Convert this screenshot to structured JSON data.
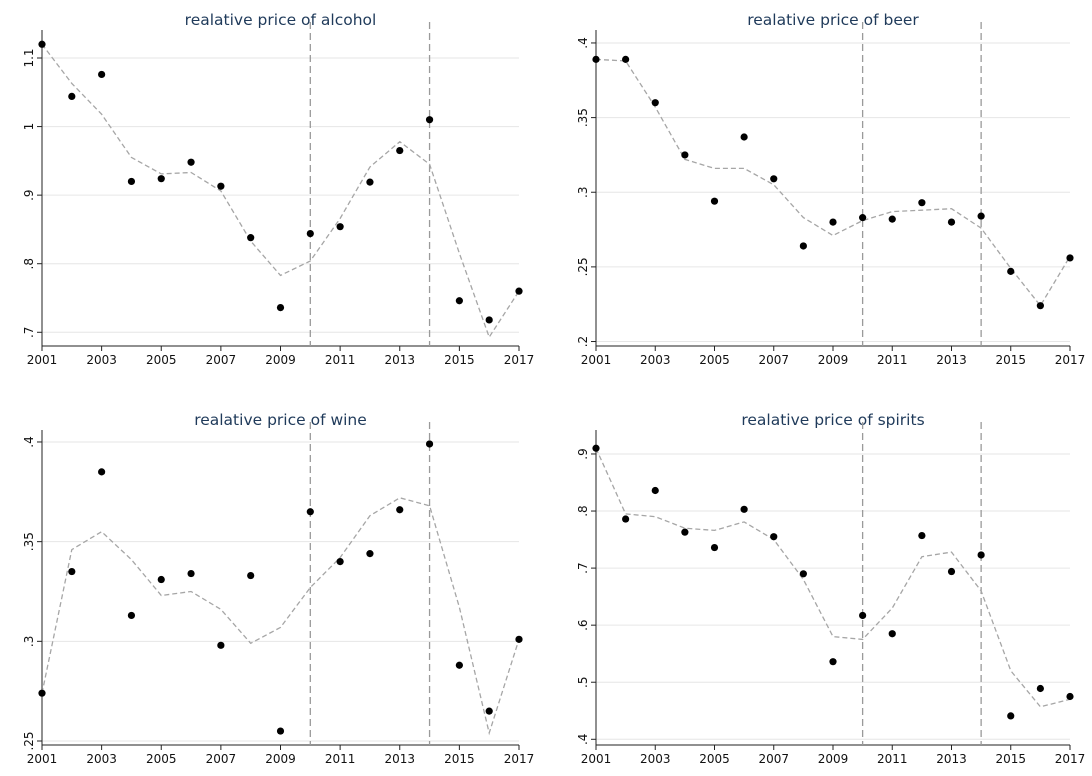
{
  "chart_data": [
    {
      "type": "scatter",
      "title": "realative price of alcohol",
      "x": [
        2001,
        2002,
        2003,
        2004,
        2005,
        2006,
        2007,
        2008,
        2009,
        2010,
        2011,
        2012,
        2013,
        2014,
        2015,
        2016,
        2017
      ],
      "series": [
        {
          "values": [
            1.12,
            1.044,
            1.076,
            0.92,
            0.924,
            0.948,
            0.913,
            0.838,
            0.736,
            0.844,
            0.854,
            0.919,
            0.965,
            1.01,
            0.746,
            0.718,
            0.76
          ]
        },
        {
          "style": "dashed-fit",
          "values": [
            1.12,
            1.063,
            1.018,
            0.955,
            0.931,
            0.933,
            0.906,
            0.833,
            0.783,
            0.804,
            0.866,
            0.941,
            0.978,
            0.945,
            0.815,
            0.693,
            0.76
          ]
        }
      ],
      "ylim": [
        0.68,
        1.135
      ],
      "yticks": [
        {
          "v": 0.7,
          "label": ".7"
        },
        {
          "v": 0.8,
          "label": ".8"
        },
        {
          "v": 0.9,
          "label": ".9"
        },
        {
          "v": 1.0,
          "label": "1"
        },
        {
          "v": 1.1,
          "label": "1.1"
        }
      ],
      "xticks": [
        "2001",
        "2003",
        "2005",
        "2007",
        "2009",
        "2011",
        "2013",
        "2015",
        "2017"
      ],
      "vlines": [
        2010,
        2014
      ],
      "grid": true
    },
    {
      "type": "scatter",
      "title": "realative price of beer",
      "x": [
        2001,
        2002,
        2003,
        2004,
        2005,
        2006,
        2007,
        2008,
        2009,
        2010,
        2011,
        2012,
        2013,
        2014,
        2015,
        2016,
        2017
      ],
      "series": [
        {
          "values": [
            0.389,
            0.389,
            0.36,
            0.325,
            0.294,
            0.337,
            0.309,
            0.264,
            0.28,
            0.283,
            0.282,
            0.293,
            0.28,
            0.284,
            0.247,
            0.224,
            0.256
          ]
        },
        {
          "style": "dashed-fit",
          "values": [
            0.389,
            0.388,
            0.357,
            0.322,
            0.316,
            0.316,
            0.305,
            0.283,
            0.271,
            0.281,
            0.287,
            0.288,
            0.289,
            0.276,
            0.249,
            0.224,
            0.257
          ]
        }
      ],
      "ylim": [
        0.197,
        0.406
      ],
      "yticks": [
        {
          "v": 0.2,
          "label": ".2"
        },
        {
          "v": 0.25,
          "label": ".25"
        },
        {
          "v": 0.3,
          "label": ".3"
        },
        {
          "v": 0.35,
          "label": ".35"
        },
        {
          "v": 0.4,
          "label": ".4"
        }
      ],
      "xticks": [
        "2001",
        "2003",
        "2005",
        "2007",
        "2009",
        "2011",
        "2013",
        "2015",
        "2017"
      ],
      "vlines": [
        2010,
        2014
      ],
      "grid": true
    },
    {
      "type": "scatter",
      "title": "realative price of wine",
      "x": [
        2001,
        2002,
        2003,
        2004,
        2005,
        2006,
        2007,
        2008,
        2009,
        2010,
        2011,
        2012,
        2013,
        2014,
        2015,
        2016,
        2017
      ],
      "series": [
        {
          "values": [
            0.274,
            0.335,
            0.385,
            0.313,
            0.331,
            0.334,
            0.298,
            0.333,
            0.255,
            0.365,
            0.34,
            0.344,
            0.366,
            0.399,
            0.288,
            0.265,
            0.301
          ]
        },
        {
          "style": "dashed-fit",
          "values": [
            0.274,
            0.346,
            0.355,
            0.341,
            0.323,
            0.325,
            0.316,
            0.299,
            0.307,
            0.327,
            0.342,
            0.363,
            0.372,
            0.368,
            0.317,
            0.254,
            0.301
          ]
        }
      ],
      "ylim": [
        0.248,
        0.404
      ],
      "yticks": [
        {
          "v": 0.25,
          "label": ".25"
        },
        {
          "v": 0.3,
          "label": ".3"
        },
        {
          "v": 0.35,
          "label": ".35"
        },
        {
          "v": 0.4,
          "label": ".4"
        }
      ],
      "xticks": [
        "2001",
        "2003",
        "2005",
        "2007",
        "2009",
        "2011",
        "2013",
        "2015",
        "2017"
      ],
      "vlines": [
        2010,
        2014
      ],
      "grid": true
    },
    {
      "type": "scatter",
      "title": "realative price of spirits",
      "x": [
        2001,
        2002,
        2003,
        2004,
        2005,
        2006,
        2007,
        2008,
        2009,
        2010,
        2011,
        2012,
        2013,
        2014,
        2015,
        2016,
        2017
      ],
      "series": [
        {
          "values": [
            0.91,
            0.786,
            0.836,
            0.763,
            0.736,
            0.803,
            0.755,
            0.69,
            0.536,
            0.617,
            0.585,
            0.757,
            0.694,
            0.723,
            0.441,
            0.489,
            0.475
          ]
        },
        {
          "style": "dashed-fit",
          "values": [
            0.91,
            0.795,
            0.79,
            0.77,
            0.766,
            0.781,
            0.75,
            0.68,
            0.58,
            0.575,
            0.63,
            0.72,
            0.728,
            0.66,
            0.52,
            0.457,
            0.47
          ]
        }
      ],
      "ylim": [
        0.39,
        0.935
      ],
      "yticks": [
        {
          "v": 0.4,
          "label": ".4"
        },
        {
          "v": 0.5,
          "label": ".5"
        },
        {
          "v": 0.6,
          "label": ".6"
        },
        {
          "v": 0.7,
          "label": ".7"
        },
        {
          "v": 0.8,
          "label": ".8"
        },
        {
          "v": 0.9,
          "label": ".9"
        }
      ],
      "xticks": [
        "2001",
        "2003",
        "2005",
        "2007",
        "2009",
        "2011",
        "2013",
        "2015",
        "2017"
      ],
      "vlines": [
        2010,
        2014
      ],
      "grid": true
    }
  ]
}
